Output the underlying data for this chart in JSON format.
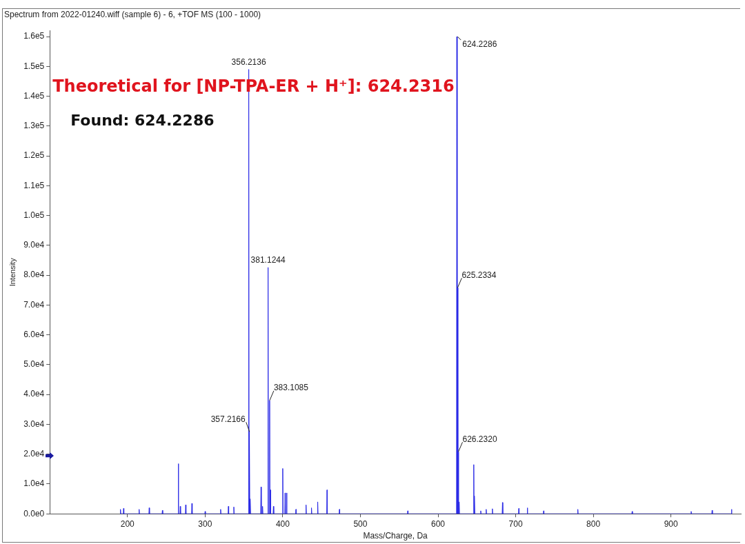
{
  "chart_data": {
    "type": "line",
    "title": "Spectrum from 2022-01240.wiff (sample 6) - 6, +TOF MS (100 - 1000)",
    "xlabel": "Mass/Charge, Da",
    "ylabel": "Intensity",
    "xlim": [
      100,
      990
    ],
    "xticks": [
      200,
      300,
      400,
      500,
      600,
      700,
      800,
      900
    ],
    "ylim": [
      0,
      162000
    ],
    "yticks": [
      {
        "value": 0,
        "label": "0.0e0"
      },
      {
        "value": 10000,
        "label": "1.0e4"
      },
      {
        "value": 20000,
        "label": "2.0e4"
      },
      {
        "value": 30000,
        "label": "3.0e4"
      },
      {
        "value": 40000,
        "label": "4.0e4"
      },
      {
        "value": 50000,
        "label": "5.0e4"
      },
      {
        "value": 60000,
        "label": "6.0e4"
      },
      {
        "value": 70000,
        "label": "7.0e4"
      },
      {
        "value": 80000,
        "label": "8.0e4"
      },
      {
        "value": 90000,
        "label": "9.0e4"
      },
      {
        "value": 100000,
        "label": "1.0e5"
      },
      {
        "value": 110000,
        "label": "1.1e5"
      },
      {
        "value": 120000,
        "label": "1.2e5"
      },
      {
        "value": 130000,
        "label": "1.3e5"
      },
      {
        "value": 140000,
        "label": "1.4e5"
      },
      {
        "value": 150000,
        "label": "1.5e5"
      },
      {
        "value": 160000,
        "label": "1.6e5"
      }
    ],
    "grid": false,
    "legend": false,
    "marker": "none",
    "series": [
      {
        "color": "#2b2be6",
        "x": [
          190.6,
          191,
          191.4,
          194.6,
          195,
          195.4,
          214.6,
          215,
          215.4,
          227.6,
          228,
          228.4,
          244.6,
          245,
          245.4,
          265.1,
          265.5,
          265.9,
          267.6,
          268,
          268.4,
          274.6,
          275,
          275.4,
          282.6,
          283,
          283.4,
          299.6,
          300,
          300.4,
          319.6,
          320,
          320.4,
          329.6,
          330,
          330.4,
          336.6,
          337,
          337.4,
          355.8,
          356.2,
          356.6,
          356.8,
          357.2,
          357.6,
          357.8,
          358.2,
          358.6,
          371.6,
          372,
          372.4,
          373.6,
          374,
          374.4,
          380.7,
          381.1,
          381.5,
          382.7,
          383.1,
          383.5,
          383.7,
          384.1,
          384.5,
          387.6,
          388,
          388.4,
          399.6,
          400,
          400.4,
          402.6,
          403,
          403.4,
          404.6,
          405,
          405.4,
          416.6,
          417,
          417.4,
          429.6,
          430,
          430.4,
          436.6,
          437,
          437.4,
          444.6,
          445,
          445.4,
          456.6,
          457,
          457.4,
          472.6,
          473,
          473.4,
          560.6,
          561,
          561.4,
          623.8,
          624.2,
          624.6,
          624.8,
          625.2,
          625.6,
          625.8,
          626.2,
          626.6,
          626.8,
          627.2,
          627.6,
          645.6,
          646,
          646.4,
          646.6,
          647,
          647.4,
          654.6,
          655,
          655.4,
          661.6,
          662,
          662.4,
          669.6,
          670,
          670.4,
          682.6,
          683,
          683.4,
          703.6,
          704,
          704.4,
          714.6,
          715,
          715.4,
          735.6,
          736,
          736.4,
          779.6,
          780,
          780.4,
          849.6,
          850,
          850.4,
          925.6,
          926,
          926.4,
          952.6,
          953,
          953.4,
          977.6,
          978,
          978.4
        ],
        "values": [
          0,
          1500,
          0,
          0,
          1800,
          0,
          0,
          1500,
          0,
          0,
          2000,
          0,
          0,
          1200,
          0,
          0,
          16800,
          0,
          0,
          2500,
          0,
          0,
          3000,
          0,
          0,
          3500,
          0,
          0,
          800,
          0,
          0,
          1500,
          0,
          0,
          2500,
          0,
          0,
          2300,
          0,
          0,
          149000,
          0,
          0,
          27500,
          0,
          0,
          5000,
          0,
          0,
          9000,
          0,
          0,
          2500,
          0,
          0,
          82600,
          0,
          0,
          38000,
          0,
          0,
          8000,
          0,
          0,
          2500,
          0,
          0,
          15200,
          0,
          0,
          7000,
          0,
          0,
          7000,
          0,
          0,
          1500,
          0,
          0,
          3000,
          0,
          0,
          2000,
          0,
          0,
          4000,
          0,
          0,
          8000,
          0,
          0,
          1500,
          0,
          0,
          1000,
          0,
          0,
          160000,
          0,
          0,
          75800,
          0,
          0,
          20800,
          0,
          0,
          4000,
          0,
          0,
          16500,
          0,
          0,
          6000,
          0,
          0,
          1000,
          0,
          0,
          1500,
          0,
          0,
          1700,
          0,
          0,
          3800,
          0,
          0,
          1800,
          0,
          0,
          2000,
          0,
          0,
          1000,
          0,
          0,
          1500,
          0,
          0,
          800,
          0,
          0,
          800,
          0,
          0,
          1200,
          0,
          0,
          1500,
          0
        ]
      }
    ],
    "annotations": [
      "Theoretical for [NP-TPA-ER + H⁺]: 624.2316",
      "Found: 624.2286",
      {
        "text": "356.2136",
        "x": 356.2,
        "y": 149000
      },
      {
        "text": "357.2166",
        "x": 357.2,
        "y": 27500
      },
      {
        "text": "381.1244",
        "x": 381.1,
        "y": 82600
      },
      {
        "text": "383.1085",
        "x": 383.1,
        "y": 38000
      },
      {
        "text": "624.2286",
        "x": 624.2,
        "y": 160000
      },
      {
        "text": "625.2334",
        "x": 625.2,
        "y": 75800
      },
      {
        "text": "626.2320",
        "x": 626.2,
        "y": 20800
      }
    ]
  }
}
